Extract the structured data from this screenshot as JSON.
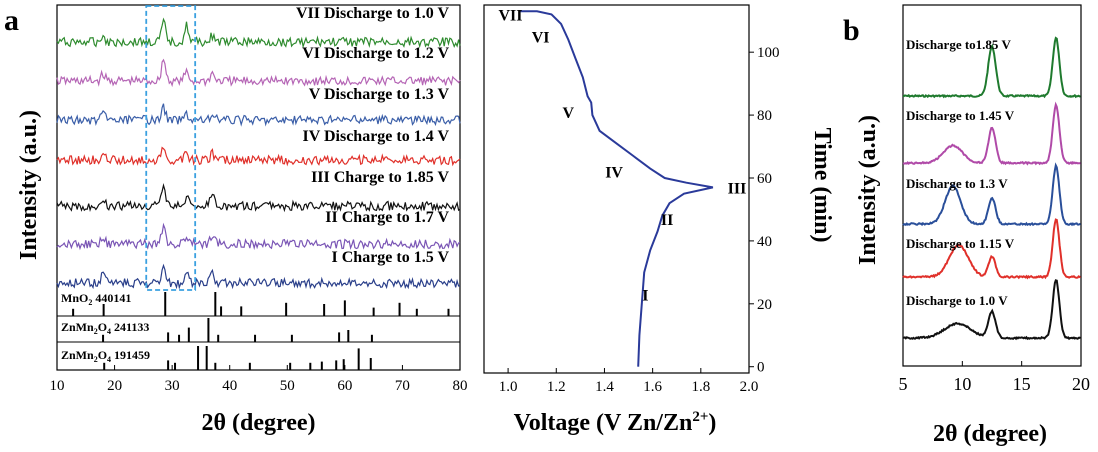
{
  "panels": {
    "a": "a",
    "b": "b"
  },
  "chart_data": [
    {
      "type": "line",
      "panel": "a",
      "xlabel": "2θ (degree)",
      "ylabel": "Intensity (a.u.)",
      "xlim": [
        10,
        80
      ],
      "xticks": [
        10,
        20,
        30,
        40,
        50,
        60,
        70,
        80
      ],
      "highlight_range": [
        25.5,
        34
      ],
      "series": [
        {
          "name": "VII Discharge to 1.0 V",
          "color": "#2e8b2e",
          "peaks": [
            [
              28.5,
              0.9
            ],
            [
              32.5,
              0.75
            ],
            [
              37,
              0.3
            ],
            [
              18,
              0.3
            ]
          ]
        },
        {
          "name": "VI Discharge to 1.2 V",
          "color": "#b565b5",
          "peaks": [
            [
              28.5,
              1.0
            ],
            [
              32.5,
              0.4
            ],
            [
              37,
              0.35
            ],
            [
              18,
              0.3
            ]
          ]
        },
        {
          "name": "V Discharge to 1.3 V",
          "color": "#3a5ea8",
          "peaks": [
            [
              28.5,
              0.55
            ],
            [
              32.5,
              0.3
            ],
            [
              37,
              0.3
            ],
            [
              18,
              0.25
            ]
          ]
        },
        {
          "name": "IV Discharge to 1.4 V",
          "color": "#e0302a",
          "peaks": [
            [
              28.5,
              0.5
            ],
            [
              32.5,
              0.3
            ],
            [
              37,
              0.3
            ],
            [
              18,
              0.25
            ]
          ]
        },
        {
          "name": "III Charge to 1.85 V",
          "color": "#111111",
          "peaks": [
            [
              28.5,
              1.1
            ],
            [
              32.5,
              0.4
            ],
            [
              37,
              0.5
            ],
            [
              18,
              0.3
            ]
          ]
        },
        {
          "name": "II Charge to 1.7 V",
          "color": "#7a55b5",
          "peaks": [
            [
              28.5,
              0.8
            ],
            [
              32.5,
              0.3
            ],
            [
              37,
              0.4
            ],
            [
              18,
              0.4
            ]
          ]
        },
        {
          "name": "I Charge to 1.5 V",
          "color": "#2a3f8a",
          "peaks": [
            [
              28.5,
              0.9
            ],
            [
              32.5,
              0.5
            ],
            [
              37,
              0.45
            ],
            [
              18,
              0.4
            ]
          ]
        }
      ],
      "references": [
        {
          "label": "MnO",
          "sub": "2",
          "label_tail": " 440141",
          "sticks": [
            [
              12.8,
              0.3
            ],
            [
              18.1,
              0.5
            ],
            [
              28.8,
              1.0
            ],
            [
              37.5,
              1.0
            ],
            [
              38.5,
              0.4
            ],
            [
              42.0,
              0.4
            ],
            [
              49.8,
              0.55
            ],
            [
              56.4,
              0.5
            ],
            [
              60.0,
              0.65
            ],
            [
              65.0,
              0.35
            ],
            [
              69.5,
              0.55
            ],
            [
              72.5,
              0.3
            ],
            [
              78.0,
              0.3
            ]
          ]
        },
        {
          "label": "ZnMn",
          "sub": "2",
          "label_tail": "O",
          "sub2": "4",
          "label_tail2": " 241133",
          "sticks": [
            [
              18.0,
              0.3
            ],
            [
              29.3,
              0.4
            ],
            [
              31.2,
              0.3
            ],
            [
              32.9,
              0.6
            ],
            [
              36.3,
              1.0
            ],
            [
              38.0,
              0.3
            ],
            [
              44.4,
              0.3
            ],
            [
              50.8,
              0.3
            ],
            [
              59.0,
              0.4
            ],
            [
              60.6,
              0.5
            ],
            [
              64.7,
              0.3
            ]
          ]
        },
        {
          "label": "ZnMn",
          "sub": "2",
          "label_tail": "O",
          "sub2": "4",
          "label_tail2": " 191459",
          "sticks": [
            [
              18.2,
              0.3
            ],
            [
              29.3,
              0.4
            ],
            [
              30.5,
              0.3
            ],
            [
              34.5,
              1.0
            ],
            [
              36.0,
              1.0
            ],
            [
              37.5,
              0.3
            ],
            [
              43.5,
              0.3
            ],
            [
              50.5,
              0.3
            ],
            [
              54.0,
              0.3
            ],
            [
              56.0,
              0.35
            ],
            [
              58.5,
              0.4
            ],
            [
              59.8,
              0.45
            ],
            [
              62.4,
              0.9
            ],
            [
              64.5,
              0.5
            ]
          ]
        }
      ]
    },
    {
      "type": "line",
      "panel": "a",
      "xlabel": "Voltage (V Zn/Zn",
      "xlabel_sup": "2+",
      "xlabel_tail": ")",
      "ylabel": "Time (min)",
      "xlim": [
        0.9,
        2.0
      ],
      "ylim": [
        -2,
        115
      ],
      "xticks": [
        1.0,
        1.2,
        1.4,
        1.6,
        1.8,
        2.0
      ],
      "yticks": [
        0,
        20,
        40,
        60,
        80,
        100
      ],
      "series": [
        {
          "name": "Charge",
          "color": "#2a3a9a",
          "points": [
            [
              1.54,
              0
            ],
            [
              1.545,
              10
            ],
            [
              1.555,
              20
            ],
            [
              1.565,
              30
            ],
            [
              1.59,
              37
            ],
            [
              1.62,
              43
            ],
            [
              1.64,
              48
            ],
            [
              1.67,
              52
            ],
            [
              1.73,
              55
            ],
            [
              1.85,
              57
            ],
            [
              1.74,
              58.5
            ],
            [
              1.65,
              60
            ],
            [
              1.59,
              63
            ],
            [
              1.52,
              67
            ],
            [
              1.45,
              71
            ],
            [
              1.38,
              75
            ],
            [
              1.35,
              80
            ],
            [
              1.345,
              84
            ],
            [
              1.33,
              86
            ],
            [
              1.31,
              92
            ],
            [
              1.28,
              98
            ],
            [
              1.25,
              104
            ],
            [
              1.22,
              109
            ],
            [
              1.18,
              112
            ],
            [
              1.12,
              113
            ],
            [
              1.05,
              113
            ]
          ]
        }
      ],
      "annotations": [
        {
          "text": "I",
          "x": 1.57,
          "y": 23
        },
        {
          "text": "II",
          "x": 1.66,
          "y": 47
        },
        {
          "text": "III",
          "x": 1.95,
          "y": 57
        },
        {
          "text": "IV",
          "x": 1.44,
          "y": 62
        },
        {
          "text": "V",
          "x": 1.25,
          "y": 81
        },
        {
          "text": "VI",
          "x": 1.135,
          "y": 105
        },
        {
          "text": "VII",
          "x": 1.01,
          "y": 112
        }
      ]
    },
    {
      "type": "line",
      "panel": "b",
      "xlabel": "2θ (degree)",
      "ylabel": "Intensity (a.u.)",
      "xlim": [
        5,
        20
      ],
      "xticks": [
        5,
        10,
        15,
        20
      ],
      "series": [
        {
          "name": "Discharge to1.85 V",
          "color": "#1f7a2e",
          "peaks": [
            [
              12.5,
              0.85,
              0.32
            ],
            [
              17.9,
              1.0,
              0.28
            ]
          ]
        },
        {
          "name": "Discharge to 1.45 V",
          "color": "#b04aa8",
          "peaks": [
            [
              9.2,
              0.3,
              0.8
            ],
            [
              12.5,
              0.6,
              0.3
            ],
            [
              17.9,
              1.0,
              0.28
            ]
          ]
        },
        {
          "name": "Discharge to 1.3 V",
          "color": "#2a4f9a",
          "peaks": [
            [
              9.2,
              0.65,
              0.65
            ],
            [
              12.5,
              0.45,
              0.3
            ],
            [
              17.9,
              1.0,
              0.28
            ]
          ]
        },
        {
          "name": "Discharge to 1.15 V",
          "color": "#e0302a",
          "peaks": [
            [
              9.7,
              0.55,
              0.8
            ],
            [
              12.5,
              0.35,
              0.3
            ],
            [
              17.9,
              1.0,
              0.28
            ]
          ]
        },
        {
          "name": "Discharge to 1.0 V",
          "color": "#111111",
          "peaks": [
            [
              9.6,
              0.25,
              1.1
            ],
            [
              12.5,
              0.45,
              0.3
            ],
            [
              17.9,
              1.0,
              0.28
            ]
          ]
        }
      ]
    }
  ]
}
